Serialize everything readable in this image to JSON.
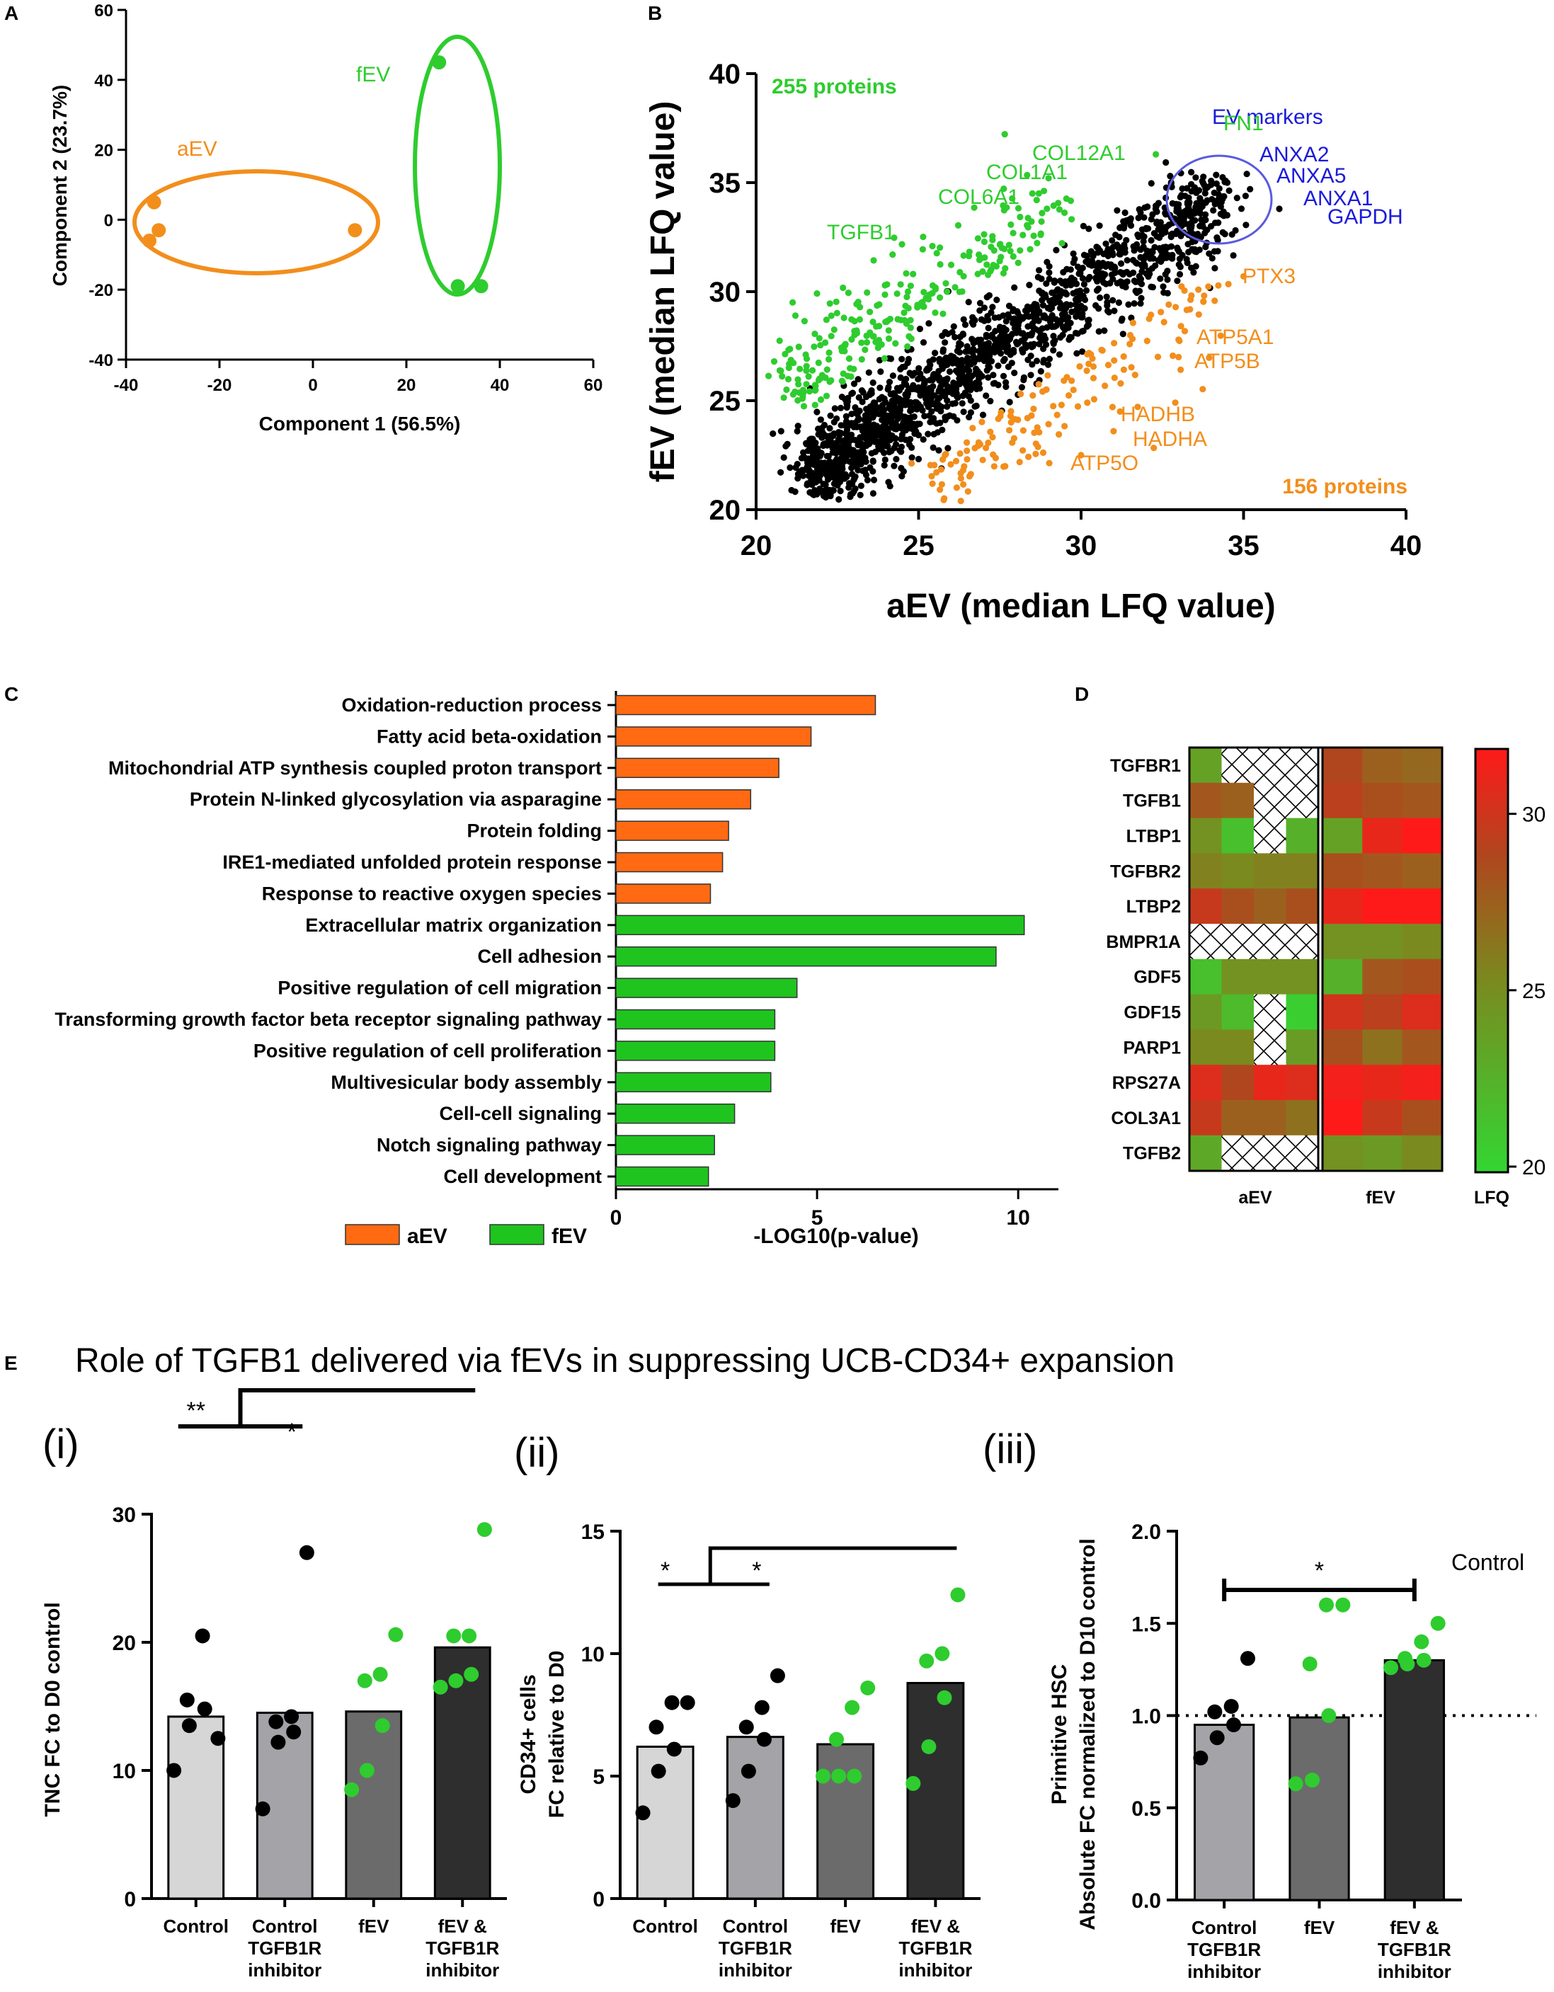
{
  "panels": {
    "a": "A",
    "b": "B",
    "c": "C",
    "d": "D",
    "e": "E"
  },
  "colors": {
    "aev": "#f28e1c",
    "fev": "#2ecc2e",
    "marker": "#1a1adb",
    "black": "#000000",
    "go_aev": "#ff6a13",
    "go_fev": "#1fc41f"
  },
  "chart_data": [
    {
      "id": "A",
      "type": "scatter",
      "title": "",
      "xlabel": "Component 1 (56.5%)",
      "ylabel": "Component 2 (23.7%)",
      "xlim": [
        -40,
        60
      ],
      "ylim": [
        -40,
        60
      ],
      "xticks": [
        "-40",
        "-20",
        "0",
        "20",
        "40",
        "60"
      ],
      "yticks": [
        "-40",
        "-20",
        "0",
        "20",
        "40",
        "60"
      ],
      "series": [
        {
          "name": "aEV",
          "points": [
            [
              -34,
              5
            ],
            [
              -33,
              -3
            ],
            [
              -35,
              -6
            ],
            [
              9,
              -3
            ]
          ]
        },
        {
          "name": "fEV",
          "points": [
            [
              27,
              45
            ],
            [
              31,
              -19
            ],
            [
              36,
              -19
            ]
          ]
        }
      ]
    },
    {
      "id": "B",
      "type": "scatter",
      "xlabel": "aEV (median LFQ value)",
      "ylabel": "fEV (median LFQ value)",
      "xlim": [
        20,
        40
      ],
      "ylim": [
        20,
        40
      ],
      "xticks": [
        "20",
        "25",
        "30",
        "35",
        "40"
      ],
      "yticks": [
        "20",
        "25",
        "30",
        "35",
        "40"
      ],
      "counts": {
        "fev_enriched": "255 proteins",
        "aev_enriched": "156 proteins"
      },
      "circle_label": "EV markers",
      "green_labels": [
        {
          "text": "FN1",
          "x": 32.3,
          "y": 36.3
        },
        {
          "text": "COL12A1",
          "x": 29.0,
          "y": 35.2
        },
        {
          "text": "COL1A1",
          "x": 28.7,
          "y": 34.5
        },
        {
          "text": "COL6A1",
          "x": 28.5,
          "y": 34.5
        },
        {
          "text": "TGFB1",
          "x": 24.2,
          "y": 31.7
        }
      ],
      "orange_labels": [
        {
          "text": "PTX3",
          "x": 35.0,
          "y": 30.7
        },
        {
          "text": "ATP5A1",
          "x": 33.0,
          "y": 27.8
        },
        {
          "text": "ATP5B",
          "x": 33.0,
          "y": 27.0
        },
        {
          "text": "HADHB",
          "x": 31.2,
          "y": 24.5
        },
        {
          "text": "HADHA",
          "x": 31.0,
          "y": 23.6
        },
        {
          "text": "ATP5O",
          "x": 30.0,
          "y": 22.5
        }
      ],
      "blue_labels": [
        {
          "text": "ANXA2",
          "x": 35.3,
          "y": 35.4
        },
        {
          "text": "ANXA5",
          "x": 35.3,
          "y": 35.0
        },
        {
          "text": "ANXA1",
          "x": 35.5,
          "y": 34.4
        },
        {
          "text": "GAPDH",
          "x": 36.1,
          "y": 33.8
        }
      ]
    },
    {
      "id": "C",
      "type": "bar",
      "xlabel": "-LOG10(p-value)",
      "xlim": [
        0,
        11
      ],
      "xticks": [
        "0",
        "5",
        "10"
      ],
      "legend": [
        "aEV",
        "fEV"
      ],
      "categories": [
        "Oxidation-reduction process",
        "Fatty acid beta-oxidation",
        "Mitochondrial ATP synthesis coupled proton transport",
        "Protein N-linked glycosylation via asparagine",
        "Protein folding",
        "IRE1-mediated unfolded protein response",
        "Response to reactive oxygen species",
        "Extracellular matrix organization",
        "Cell adhesion",
        "Positive regulation of cell migration",
        "Transforming growth factor beta receptor signaling pathway",
        "Positive regulation of cell proliferation",
        "Multivesicular body assembly",
        "Cell-cell signaling",
        "Notch signaling pathway",
        "Cell development"
      ],
      "values": [
        6.45,
        4.85,
        4.05,
        3.35,
        2.8,
        2.65,
        2.35,
        10.15,
        9.45,
        4.5,
        3.95,
        3.95,
        3.85,
        2.95,
        2.45,
        2.3
      ],
      "groups": [
        "aEV",
        "aEV",
        "aEV",
        "aEV",
        "aEV",
        "aEV",
        "aEV",
        "fEV",
        "fEV",
        "fEV",
        "fEV",
        "fEV",
        "fEV",
        "fEV",
        "fEV",
        "fEV"
      ]
    },
    {
      "id": "D",
      "type": "heatmap",
      "rows": [
        "TGFBR1",
        "TGFB1",
        "LTBP1",
        "TGFBR2",
        "LTBP2",
        "BMPR1A",
        "GDF5",
        "GDF15",
        "PARP1",
        "RPS27A",
        "COL3A1",
        "TGFB2"
      ],
      "column_groups": [
        "aEV",
        "fEV"
      ],
      "colorbar_label": "LFQ",
      "colorbar_range": [
        20,
        32
      ],
      "colorbar_ticks": [
        "20",
        "25",
        "30"
      ],
      "values_aev": [
        [
          23.5,
          null,
          null,
          null
        ],
        [
          28.0,
          27.5,
          null,
          null
        ],
        [
          24.5,
          21.5,
          null,
          22.5
        ],
        [
          25.5,
          25.0,
          25.5,
          25.5
        ],
        [
          30.0,
          28.5,
          27.5,
          28.5
        ],
        [
          null,
          null,
          null,
          null
        ],
        [
          21.5,
          24.5,
          24.5,
          24.5
        ],
        [
          24.0,
          21.8,
          null,
          20.5
        ],
        [
          25.0,
          25.0,
          null,
          23.8
        ],
        [
          31.0,
          29.0,
          31.5,
          31.0
        ],
        [
          30.0,
          27.5,
          27.5,
          26.5
        ],
        [
          23.0,
          null,
          null,
          null
        ]
      ],
      "values_fev": [
        [
          29.0,
          27.5,
          27.0
        ],
        [
          29.5,
          28.5,
          28.0
        ],
        [
          23.5,
          31.5,
          32.5
        ],
        [
          28.5,
          28.0,
          27.5
        ],
        [
          31.5,
          32.5,
          33.5
        ],
        [
          24.5,
          24.5,
          25.0
        ],
        [
          22.5,
          28.0,
          28.5
        ],
        [
          30.5,
          29.5,
          31.0
        ],
        [
          28.5,
          26.5,
          28.0
        ],
        [
          32.0,
          31.5,
          32.0
        ],
        [
          32.5,
          30.0,
          28.5
        ],
        [
          24.5,
          24.0,
          25.0
        ]
      ]
    },
    {
      "id": "E(i)",
      "type": "bar",
      "ylabel": "TNC FC to D0 control",
      "ylim": [
        0,
        30
      ],
      "yticks": [
        "0",
        "10",
        "20",
        "30"
      ],
      "categories": [
        "Control",
        "Control TGFB1R inhibitor",
        "fEV",
        "fEV & TGFB1R inhibitor"
      ],
      "values": [
        14.2,
        14.5,
        14.6,
        19.6
      ],
      "points": [
        [
          10,
          13.5,
          14.8,
          15.5,
          20.5,
          12.5
        ],
        [
          7,
          12.2,
          13.0,
          13.8,
          14.2,
          27.0
        ],
        [
          8.5,
          10.0,
          13.5,
          17.0,
          17.5,
          20.6
        ],
        [
          16.5,
          17.0,
          17.5,
          20.5,
          20.5,
          28.8
        ]
      ],
      "significance": [
        "**",
        "*"
      ]
    },
    {
      "id": "E(ii)",
      "type": "bar",
      "ylabel": "CD34+ cells FC relative to D0",
      "ylim": [
        0,
        15
      ],
      "yticks": [
        "0",
        "5",
        "10",
        "15"
      ],
      "categories": [
        "Control",
        "Control TGFB1R inhibitor",
        "fEV",
        "fEV & TGFB1R inhibitor"
      ],
      "values": [
        6.2,
        6.6,
        6.3,
        8.8
      ],
      "points": [
        [
          3.5,
          5.2,
          6.1,
          7.0,
          8.0,
          8.0
        ],
        [
          4.0,
          5.2,
          6.5,
          7.0,
          7.8,
          9.1
        ],
        [
          5.0,
          5.0,
          5.0,
          6.5,
          7.8,
          8.6
        ],
        [
          4.7,
          6.2,
          8.2,
          9.7,
          10.0,
          12.4
        ]
      ],
      "significance": [
        "*",
        "*"
      ]
    },
    {
      "id": "E(iii)",
      "type": "bar",
      "ylabel": "Primitive HSC Absolute FC normalized to D10 control",
      "ylim": [
        0,
        2.0
      ],
      "yticks": [
        "0.0",
        "0.5",
        "1.0",
        "1.5",
        "2.0"
      ],
      "categories": [
        "Control TGFB1R inhibitor",
        "fEV",
        "fEV & TGFB1R inhibitor"
      ],
      "values": [
        0.95,
        0.99,
        1.3
      ],
      "points": [
        [
          0.77,
          0.88,
          0.95,
          1.02,
          1.05,
          1.31
        ],
        [
          0.63,
          0.65,
          1.0,
          1.28,
          1.6,
          1.6
        ],
        [
          1.26,
          1.28,
          1.3,
          1.31,
          1.4,
          1.5
        ]
      ],
      "reference_line": 1.0,
      "reference_label": "Control",
      "significance": [
        "*"
      ]
    }
  ],
  "panel_e": {
    "title": "Role of TGFB1 delivered via fEVs in suppressing UCB-CD34+ expansion",
    "sublabels": [
      "(i)",
      "(ii)",
      "(iii)"
    ],
    "cat_lines": {
      "control": [
        "Control"
      ],
      "control_inh": [
        "Control",
        "TGFB1R",
        "inhibitor"
      ],
      "fev": [
        "fEV"
      ],
      "fev_inh": [
        "fEV &",
        "TGFB1R",
        "inhibitor"
      ]
    }
  }
}
